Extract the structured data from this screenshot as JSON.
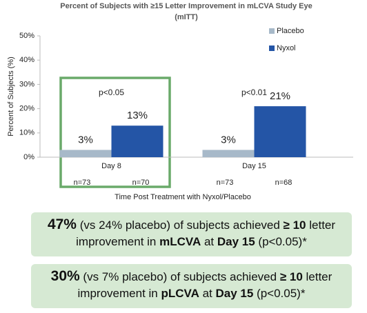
{
  "chart_data": {
    "type": "bar",
    "title": "Percent of Subjects with ≥15 Letter Improvement in mLCVA Study Eye",
    "subtitle": "(mITT)",
    "xlabel": "Time Post Treatment with Nyxol/Placebo",
    "ylabel": "Percent of Subjects (%)",
    "categories": [
      "Day 8",
      "Day 15"
    ],
    "annotations": [
      "p<0.05",
      "p<0.01"
    ],
    "series": [
      {
        "name": "Placebo",
        "color": "#a7b9c9",
        "values": [
          3,
          3
        ],
        "value_labels": [
          "3%",
          "3%"
        ],
        "n_labels": [
          "n=73",
          "n=73"
        ]
      },
      {
        "name": "Nyxol",
        "color": "#2455a6",
        "values": [
          13,
          21
        ],
        "value_labels": [
          "13%",
          "21%"
        ],
        "n_labels": [
          "n=70",
          "n=68"
        ]
      }
    ],
    "ylim": [
      0,
      50
    ],
    "yticks": [
      {
        "value": 0,
        "label": "0%"
      },
      {
        "value": 10,
        "label": "10%"
      },
      {
        "value": 20,
        "label": "20%"
      },
      {
        "value": 30,
        "label": "30%"
      },
      {
        "value": 40,
        "label": "40%"
      },
      {
        "value": 50,
        "label": "50%"
      }
    ],
    "legend": "top-right"
  },
  "callouts": [
    {
      "lead": "47%",
      "parts": [
        " (vs 24% placebo) of subjects achieved ",
        "≥ 10",
        " letter improvement in ",
        "mLCVA",
        " at ",
        "Day 15",
        " (p<0.05)*"
      ]
    },
    {
      "lead": "30%",
      "parts": [
        " (vs 7% placebo) of subjects achieved ",
        "≥ 10",
        " letter improvement in ",
        "pLCVA",
        " at ",
        "Day 15",
        " (p<0.05)*"
      ]
    }
  ]
}
